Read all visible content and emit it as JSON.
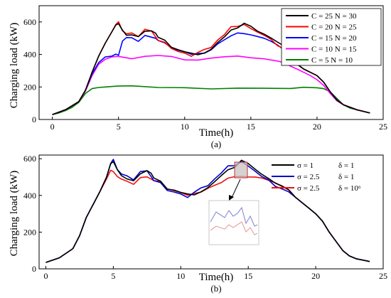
{
  "chart_data": [
    {
      "type": "line",
      "panel_label": "(a)",
      "xlabel": "Time(h)",
      "ylabel": "Charging load (kW)",
      "xlim": [
        -1,
        25
      ],
      "ylim": [
        0,
        700
      ],
      "xticks": [
        "0",
        "5",
        "10",
        "15",
        "20",
        "25"
      ],
      "yticks": [
        "0",
        "200",
        "400",
        "600"
      ],
      "grid": false,
      "legend_position": "top-right",
      "series": [
        {
          "name": "C = 25  N = 30",
          "color": "#000000",
          "x": [
            0,
            1,
            2,
            2.5,
            3,
            3.5,
            4,
            4.5,
            4.8,
            5,
            5.3,
            5.6,
            6,
            6.5,
            7,
            7.5,
            7.8,
            8,
            8.5,
            9,
            9.5,
            10,
            10.5,
            11,
            11.5,
            12,
            12.5,
            13,
            13.5,
            14,
            14.5,
            15,
            15.5,
            16,
            16.5,
            17,
            17.5,
            18,
            18.5,
            19,
            19.5,
            20,
            20.5,
            21,
            21.5,
            22,
            23,
            24
          ],
          "y": [
            30,
            60,
            110,
            180,
            290,
            390,
            470,
            540,
            590,
            595,
            550,
            520,
            530,
            510,
            545,
            540,
            520,
            500,
            480,
            440,
            420,
            410,
            400,
            405,
            420,
            440,
            480,
            520,
            560,
            570,
            580,
            565,
            540,
            520,
            500,
            470,
            440,
            380,
            340,
            310,
            290,
            270,
            230,
            170,
            120,
            90,
            60,
            40
          ]
        },
        {
          "name": "C = 20  N = 25",
          "color": "#ff0000",
          "x": [
            0,
            1,
            2,
            2.5,
            3,
            3.5,
            4,
            4.5,
            4.8,
            5,
            5.3,
            5.6,
            6,
            6.5,
            7,
            7.5,
            7.8,
            8,
            8.5,
            9,
            9.5,
            10,
            10.5,
            11,
            11.5,
            12,
            12.5,
            13,
            13.5,
            14,
            14.5,
            15,
            15.5,
            16,
            16.5,
            17,
            17.5,
            18,
            18.5,
            19,
            19.5,
            20,
            20.5,
            21,
            21.5,
            22,
            23,
            24
          ],
          "y": [
            30,
            60,
            110,
            180,
            290,
            390,
            470,
            540,
            590,
            595,
            545,
            520,
            525,
            505,
            545,
            540,
            515,
            495,
            475,
            440,
            420,
            410,
            400,
            405,
            420,
            440,
            480,
            520,
            560,
            570,
            580,
            565,
            545,
            525,
            500,
            465,
            440,
            380,
            340,
            310,
            290,
            270,
            230,
            170,
            120,
            90,
            60,
            40
          ]
        },
        {
          "name": "C = 15  N = 20",
          "color": "#0000ff",
          "x": [
            0,
            1,
            2,
            2.5,
            3,
            3.5,
            4,
            4.5,
            4.8,
            5,
            5.3,
            5.6,
            6,
            6.5,
            7,
            7.5,
            7.8,
            8,
            8.5,
            9,
            9.5,
            10,
            10.5,
            11,
            11.5,
            12,
            12.5,
            13,
            13.5,
            14,
            14.5,
            15,
            15.5,
            16,
            16.5,
            17,
            17.5,
            18,
            18.5,
            19,
            19.5,
            20,
            20.5,
            21,
            21.5,
            22,
            23,
            24
          ],
          "y": [
            30,
            60,
            110,
            180,
            280,
            350,
            385,
            390,
            395,
            400,
            490,
            505,
            505,
            490,
            520,
            510,
            500,
            480,
            460,
            435,
            420,
            410,
            400,
            405,
            415,
            430,
            470,
            500,
            520,
            535,
            540,
            525,
            510,
            495,
            480,
            450,
            420,
            390,
            340,
            310,
            290,
            270,
            230,
            170,
            120,
            90,
            60,
            40
          ]
        },
        {
          "name": "C = 10  N = 15",
          "color": "#ff00ff",
          "x": [
            0,
            1,
            2,
            2.5,
            3,
            3.5,
            4,
            4.5,
            5,
            6,
            7,
            8,
            9,
            10,
            11,
            12,
            13,
            14,
            15,
            16,
            17,
            17.5,
            18,
            18.5,
            19,
            19.5,
            20,
            20.5,
            21,
            21.5,
            22,
            23,
            24
          ],
          "y": [
            30,
            60,
            110,
            175,
            270,
            340,
            370,
            385,
            390,
            385,
            385,
            385,
            380,
            365,
            365,
            375,
            380,
            385,
            390,
            385,
            370,
            355,
            330,
            310,
            290,
            270,
            245,
            210,
            160,
            115,
            90,
            60,
            40
          ]
        },
        {
          "name": "C = 5  N = 10",
          "color": "#008000",
          "x": [
            0,
            0.5,
            1,
            1.5,
            2,
            2.5,
            3,
            3.5,
            4,
            5,
            6,
            8,
            10,
            12,
            14,
            16,
            18,
            19,
            20,
            20.5,
            21,
            21.5,
            22,
            22.5,
            23,
            23.5,
            24
          ],
          "y": [
            30,
            40,
            55,
            75,
            105,
            160,
            190,
            197,
            200,
            200,
            200,
            200,
            200,
            200,
            200,
            200,
            200,
            198,
            195,
            190,
            170,
            130,
            90,
            70,
            60,
            50,
            40
          ]
        }
      ]
    },
    {
      "type": "line",
      "panel_label": "(b)",
      "xlabel": "Time(h)",
      "ylabel": "Charging load (kW)",
      "xlim": [
        -0.5,
        25
      ],
      "ylim": [
        0,
        620
      ],
      "xticks": [
        "0",
        "5",
        "10",
        "15",
        "20",
        "25"
      ],
      "yticks": [
        "0",
        "200",
        "400",
        "600"
      ],
      "grid": false,
      "legend_position": "top-right",
      "series": [
        {
          "name": "σ = 1",
          "name_part2": "δ = 1",
          "color": "#000000",
          "x": [
            0,
            1,
            2,
            2.5,
            3,
            3.5,
            4,
            4.5,
            4.8,
            5,
            5.3,
            5.6,
            6,
            6.5,
            7,
            7.5,
            7.8,
            8,
            8.5,
            9,
            9.5,
            10,
            10.5,
            11,
            11.5,
            12,
            12.5,
            13,
            13.5,
            14,
            14.5,
            15,
            15.5,
            16,
            16.5,
            17,
            17.5,
            18,
            18.5,
            19,
            19.5,
            20,
            20.5,
            21,
            21.5,
            22,
            22.5,
            23,
            24
          ],
          "y": [
            35,
            60,
            110,
            180,
            280,
            350,
            420,
            500,
            580,
            590,
            540,
            510,
            500,
            480,
            520,
            530,
            510,
            490,
            470,
            430,
            420,
            410,
            400,
            410,
            430,
            450,
            480,
            520,
            550,
            560,
            580,
            565,
            540,
            510,
            490,
            460,
            440,
            420,
            390,
            360,
            330,
            300,
            260,
            200,
            150,
            100,
            70,
            55,
            40
          ]
        },
        {
          "name": "σ = 2.5",
          "name_part2": "δ = 1",
          "color": "#0000cc",
          "x": [
            0,
            1,
            2,
            2.5,
            3,
            3.5,
            4,
            4.5,
            4.8,
            5,
            5.3,
            5.6,
            6,
            6.5,
            7,
            7.5,
            7.8,
            8,
            8.5,
            9,
            9.5,
            10,
            10.5,
            11,
            11.5,
            12,
            12.5,
            13,
            13.5,
            14,
            14.5,
            15,
            15.5,
            16,
            16.5,
            17,
            17.5,
            18,
            18.5,
            19,
            19.5,
            20,
            20.5,
            21,
            21.5,
            22,
            22.5,
            23,
            24
          ],
          "y": [
            35,
            60,
            110,
            180,
            280,
            350,
            420,
            500,
            580,
            590,
            540,
            510,
            500,
            480,
            520,
            530,
            510,
            490,
            470,
            430,
            420,
            410,
            400,
            410,
            430,
            450,
            480,
            520,
            550,
            560,
            580,
            565,
            540,
            510,
            490,
            460,
            440,
            420,
            390,
            360,
            330,
            300,
            260,
            200,
            150,
            100,
            70,
            55,
            40
          ]
        },
        {
          "name": "σ = 2.5",
          "name_part2": "δ = 10⁶",
          "color": "#ee1111",
          "x": [
            0,
            1,
            2,
            2.5,
            3,
            3.5,
            4,
            4.5,
            4.8,
            5,
            5.3,
            5.6,
            6,
            6.5,
            7,
            7.5,
            7.8,
            8,
            8.5,
            9,
            9.5,
            10,
            10.5,
            11,
            11.5,
            12,
            12.5,
            13,
            13.5,
            14,
            14.5,
            15,
            15.5,
            16,
            16.5,
            17,
            17.5,
            18,
            18.5,
            19,
            19.5,
            20,
            20.5,
            21,
            21.5,
            22,
            22.5,
            23,
            24
          ],
          "y": [
            35,
            60,
            110,
            180,
            280,
            350,
            420,
            490,
            530,
            535,
            510,
            490,
            480,
            470,
            500,
            505,
            490,
            475,
            465,
            430,
            420,
            410,
            400,
            410,
            425,
            440,
            460,
            480,
            500,
            505,
            515,
            505,
            500,
            490,
            480,
            460,
            440,
            420,
            390,
            360,
            330,
            300,
            260,
            200,
            150,
            100,
            70,
            55,
            40
          ]
        }
      ]
    }
  ]
}
